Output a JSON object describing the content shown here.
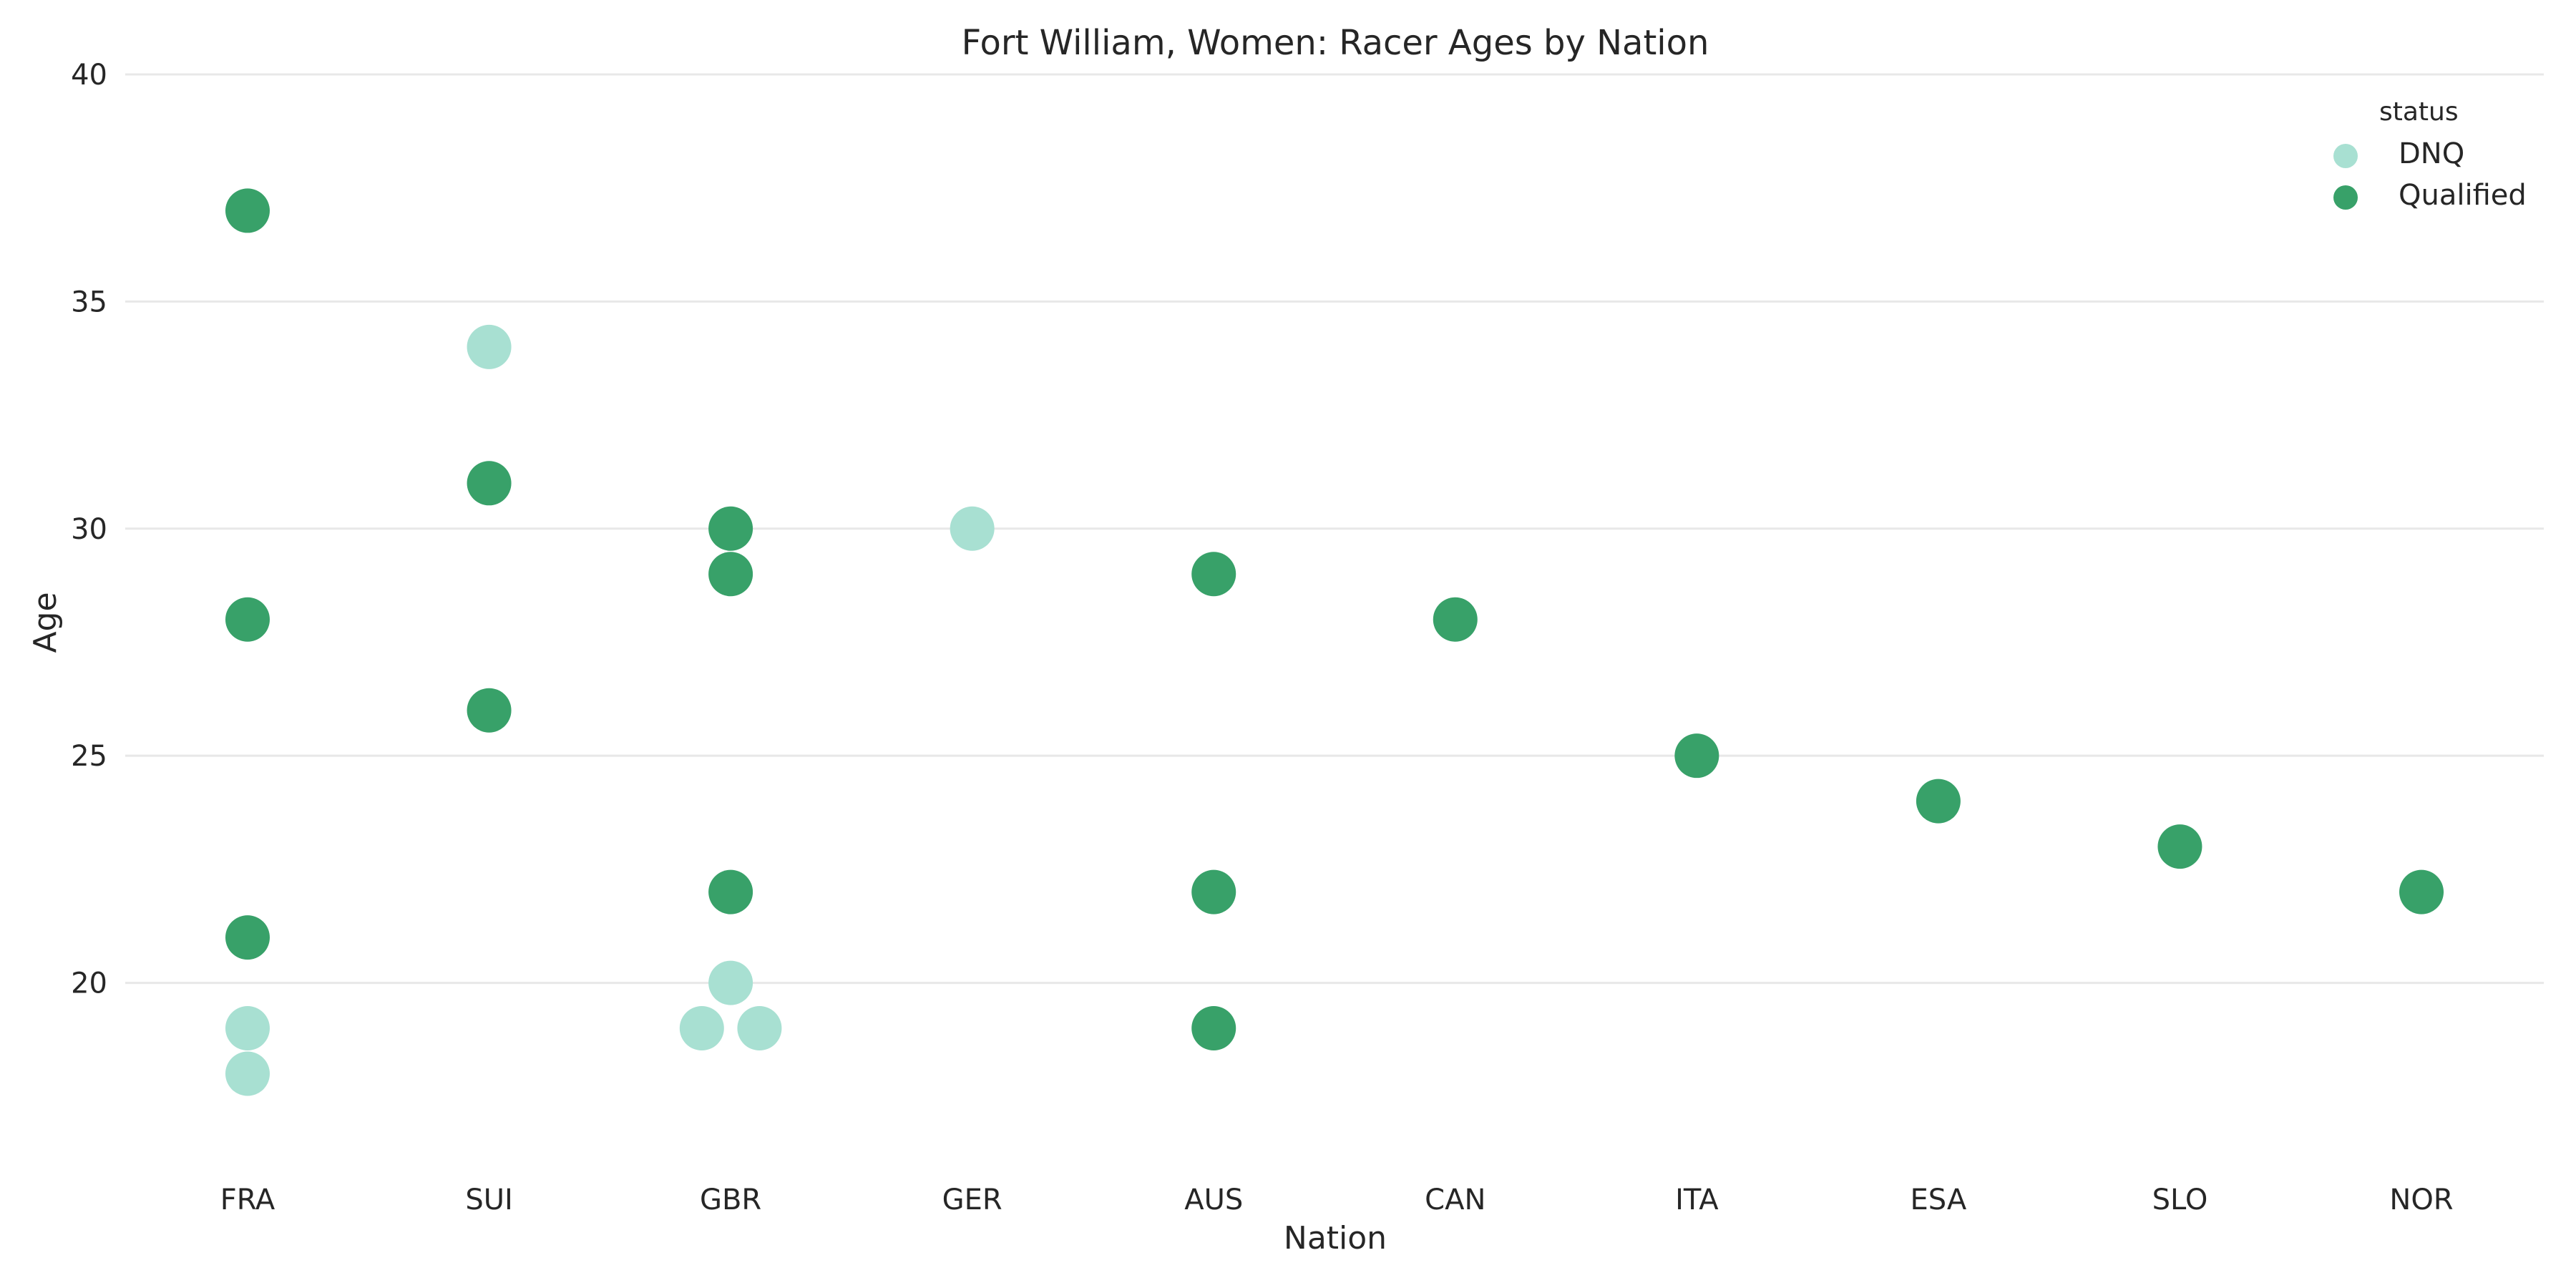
{
  "chart_data": {
    "type": "scatter",
    "title": "Fort William, Women: Racer Ages by Nation",
    "xlabel": "Nation",
    "ylabel": "Age",
    "ylim": [
      17,
      40
    ],
    "yticks": [
      20,
      25,
      30,
      35,
      40
    ],
    "categories": [
      "FRA",
      "SUI",
      "GBR",
      "GER",
      "AUS",
      "CAN",
      "ITA",
      "ESA",
      "SLO",
      "NOR"
    ],
    "grid": "horizontal",
    "legend": {
      "title": "status",
      "placement": "top-right",
      "entries": [
        "DNQ",
        "Qualified"
      ]
    },
    "series": [
      {
        "name": "DNQ",
        "color": "#a8e0d2",
        "points": [
          {
            "x": "FRA",
            "y": 19
          },
          {
            "x": "FRA",
            "y": 18
          },
          {
            "x": "SUI",
            "y": 34
          },
          {
            "x": "GBR",
            "y": 20
          },
          {
            "x": "GBR",
            "y": 19
          },
          {
            "x": "GBR",
            "y": 19
          },
          {
            "x": "GER",
            "y": 30
          }
        ]
      },
      {
        "name": "Qualified",
        "color": "#38a169",
        "points": [
          {
            "x": "FRA",
            "y": 37
          },
          {
            "x": "FRA",
            "y": 28
          },
          {
            "x": "FRA",
            "y": 21
          },
          {
            "x": "SUI",
            "y": 31
          },
          {
            "x": "SUI",
            "y": 26
          },
          {
            "x": "GBR",
            "y": 30
          },
          {
            "x": "GBR",
            "y": 29
          },
          {
            "x": "GBR",
            "y": 22
          },
          {
            "x": "AUS",
            "y": 29
          },
          {
            "x": "AUS",
            "y": 22
          },
          {
            "x": "AUS",
            "y": 19
          },
          {
            "x": "CAN",
            "y": 28
          },
          {
            "x": "ITA",
            "y": 25
          },
          {
            "x": "ESA",
            "y": 24
          },
          {
            "x": "SLO",
            "y": 23
          },
          {
            "x": "NOR",
            "y": 22
          }
        ]
      }
    ]
  }
}
